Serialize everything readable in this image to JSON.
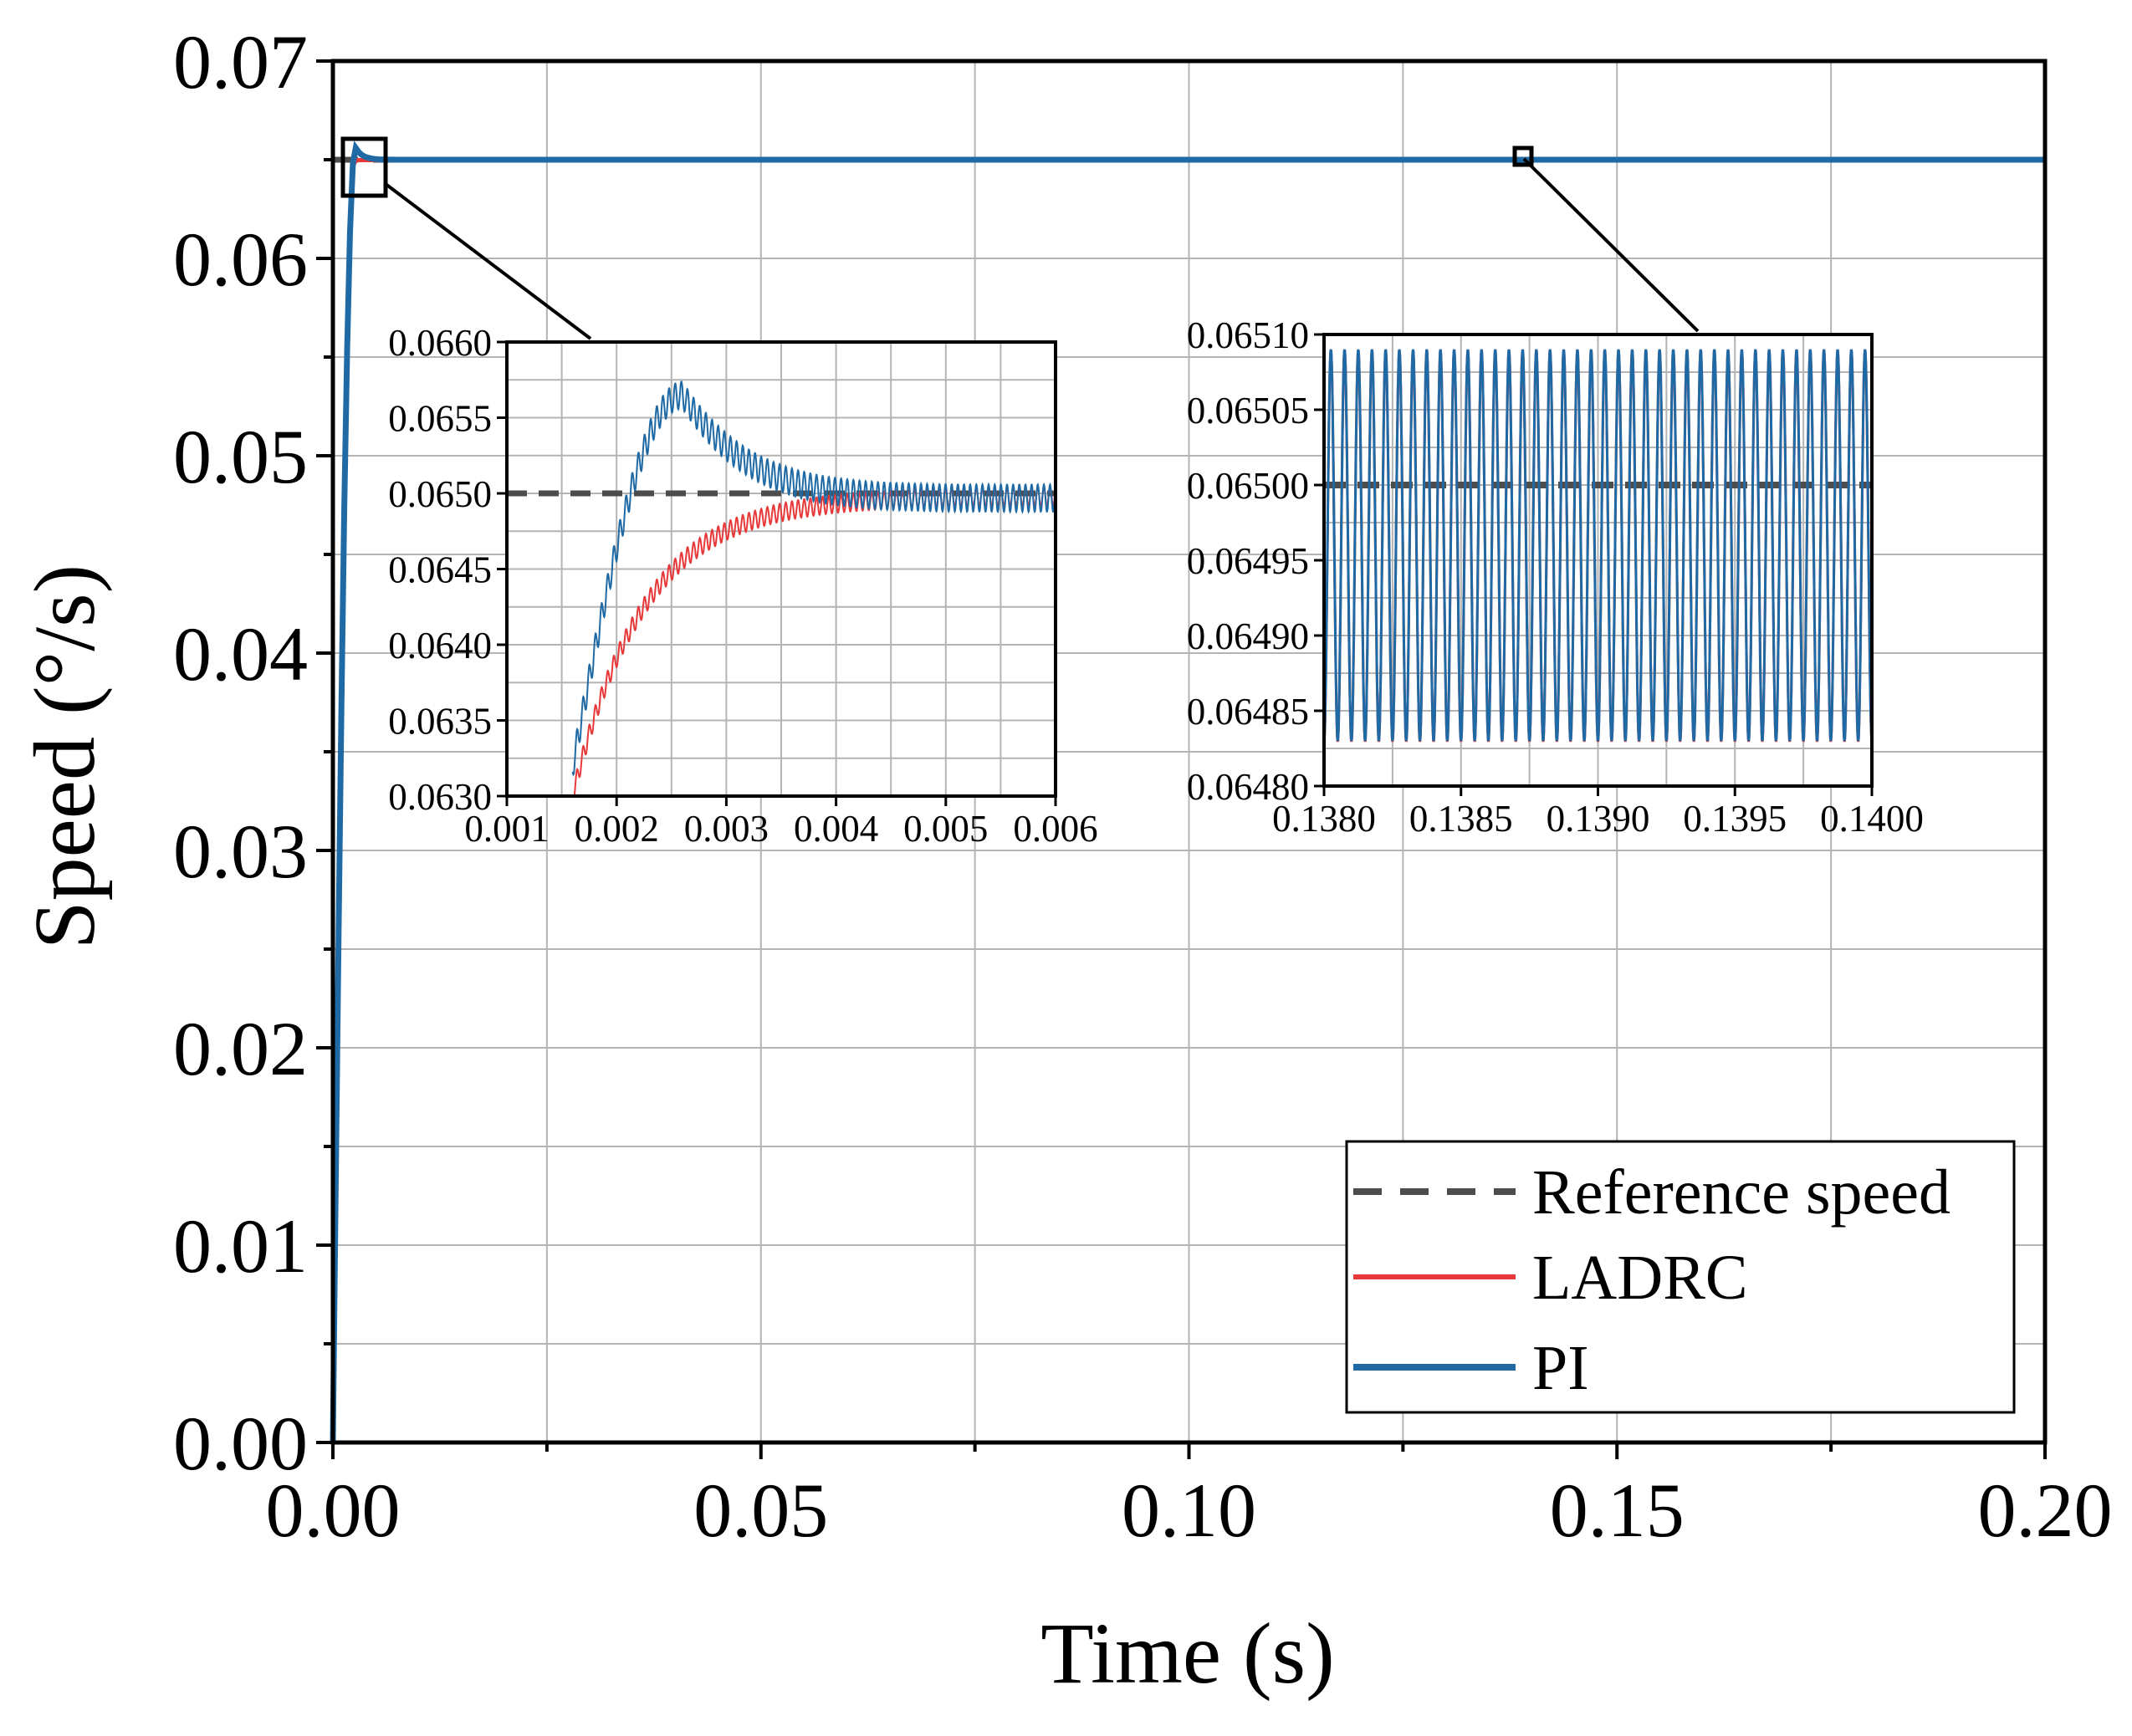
{
  "chart_data": {
    "type": "line",
    "xlabel": "Time (s)",
    "ylabel": "Speed (°/s)",
    "xlim": [
      0,
      0.2
    ],
    "ylim": [
      0,
      0.07
    ],
    "xticks": [
      "0.00",
      "0.05",
      "0.10",
      "0.15",
      "0.20"
    ],
    "yticks": [
      "0.00",
      "0.01",
      "0.02",
      "0.03",
      "0.04",
      "0.05",
      "0.06",
      "0.07"
    ],
    "grid": true,
    "legend_position": "bottom-right",
    "series": [
      {
        "name": "Reference speed",
        "style": "dashed",
        "color": "#4d4d4d",
        "value": 0.065
      },
      {
        "name": "LADRC",
        "style": "solid",
        "color": "#e8393a",
        "settles_to": 0.065,
        "rise_time_s": 0.0025,
        "overshoot": 0
      },
      {
        "name": "PI",
        "style": "solid",
        "color": "#1f6aa5",
        "settles_to": 0.065,
        "peak_value": 0.06565,
        "peak_time_s": 0.0026
      }
    ],
    "insets": [
      {
        "name": "transient-zoom",
        "xlim": [
          0.001,
          0.006
        ],
        "ylim": [
          0.063,
          0.066
        ],
        "xticks": [
          "0.001",
          "0.002",
          "0.003",
          "0.004",
          "0.005",
          "0.006"
        ],
        "yticks": [
          "0.0630",
          "0.0635",
          "0.0640",
          "0.0645",
          "0.0650",
          "0.0655",
          "0.0660"
        ],
        "PI_peak": 0.06565,
        "LADRC_final": 0.06498,
        "reference": 0.065
      },
      {
        "name": "steady-state-zoom",
        "xlim": [
          0.138,
          0.14
        ],
        "ylim": [
          0.0648,
          0.0651
        ],
        "xticks": [
          "0.1380",
          "0.1385",
          "0.1390",
          "0.1395",
          "0.1400"
        ],
        "yticks": [
          "0.06480",
          "0.06485",
          "0.06490",
          "0.06495",
          "0.06500",
          "0.06505",
          "0.06510"
        ],
        "oscillation_max": 0.06509,
        "oscillation_min": 0.06483,
        "oscillation_cycles": 40,
        "reference": 0.065
      }
    ]
  }
}
